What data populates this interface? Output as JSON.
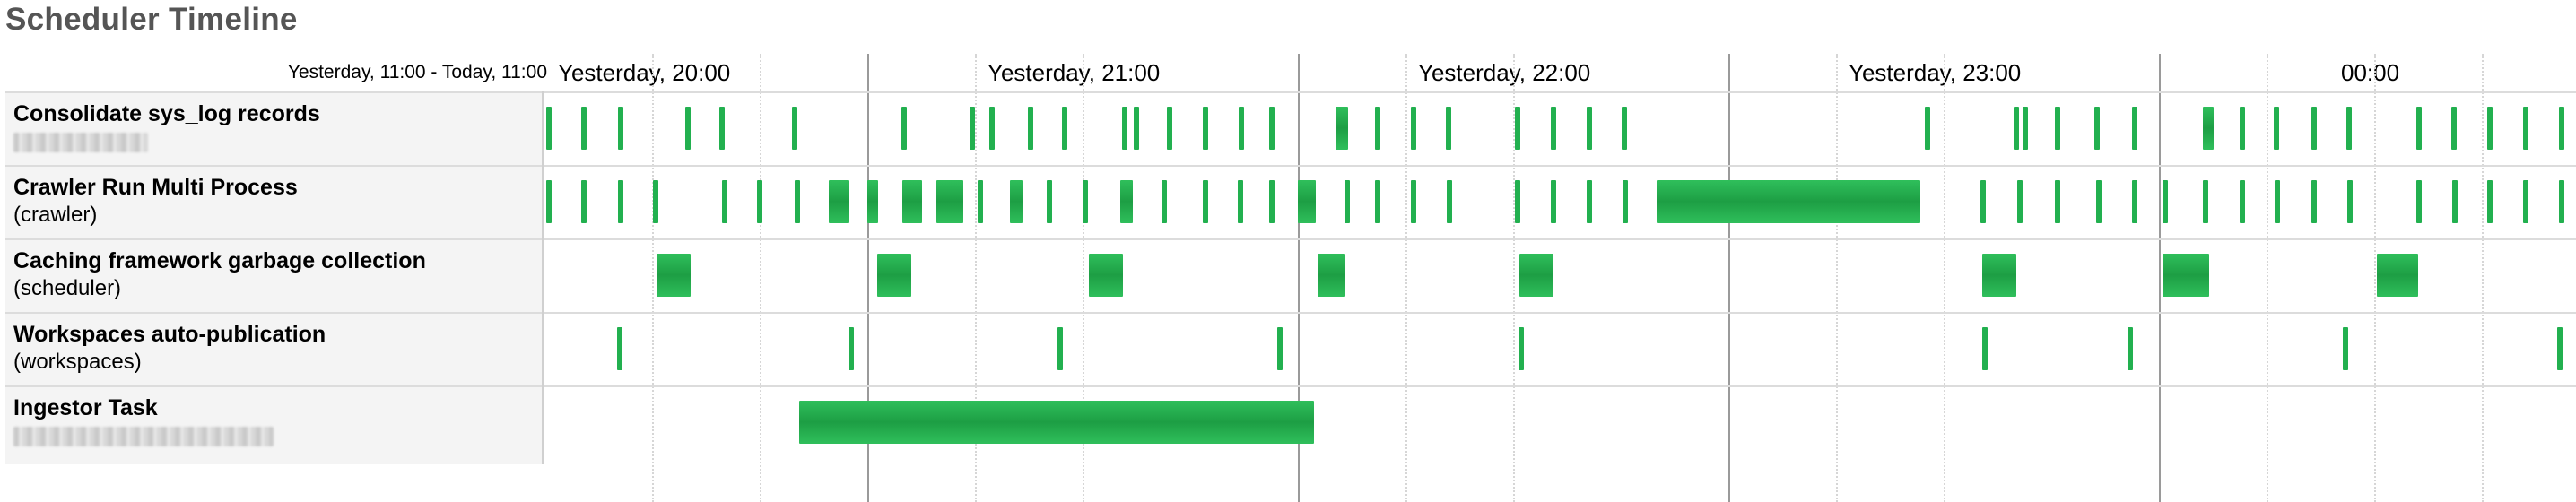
{
  "page_title": "Scheduler Timeline",
  "timeline": {
    "range_label": "Yesterday, 11:00 - Today, 11:00",
    "tick_labels": [
      "Yesterday, 20:00",
      "Yesterday, 21:00",
      "Yesterday, 22:00",
      "Yesterday, 23:00",
      "00:00"
    ]
  },
  "tasks": [
    {
      "name": "Consolidate sys_log records",
      "subtitle": ""
    },
    {
      "name": "Crawler Run Multi Process",
      "subtitle": "(crawler)"
    },
    {
      "name": "Caching framework garbage collection",
      "subtitle": "(scheduler)"
    },
    {
      "name": "Workspaces auto-publication",
      "subtitle": "(workspaces)"
    },
    {
      "name": "Ingestor Task",
      "subtitle": ""
    }
  ],
  "colors": {
    "bar": "#22b04f",
    "label_bg": "#f4f4f4",
    "title": "#555555"
  }
}
